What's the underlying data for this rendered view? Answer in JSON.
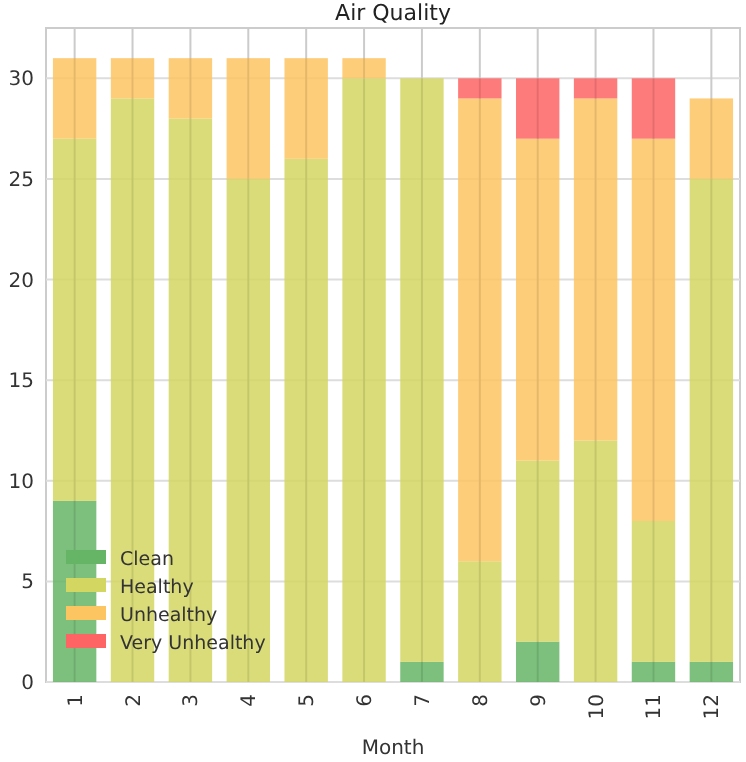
{
  "chart_data": {
    "type": "bar",
    "title": "Air Quality",
    "xlabel": "Month",
    "categories": [
      "1",
      "2",
      "3",
      "4",
      "5",
      "6",
      "7",
      "8",
      "9",
      "10",
      "11",
      "12"
    ],
    "stacked": true,
    "series": [
      {
        "name": "Clean",
        "color": "#66b566",
        "values": [
          9,
          0,
          0,
          0,
          0,
          0,
          1,
          0,
          2,
          0,
          1,
          1
        ]
      },
      {
        "name": "Healthy",
        "color": "#d4d662",
        "values": [
          18,
          29,
          28,
          25,
          26,
          30,
          29,
          6,
          9,
          12,
          7,
          24
        ]
      },
      {
        "name": "Unhealthy",
        "color": "#fdc462",
        "values": [
          4,
          2,
          3,
          6,
          5,
          1,
          0,
          23,
          16,
          17,
          19,
          4
        ]
      },
      {
        "name": "Very Unhealthy",
        "color": "#fe6464",
        "values": [
          0,
          0,
          0,
          0,
          0,
          0,
          0,
          1,
          3,
          1,
          3,
          0
        ]
      }
    ],
    "ylim": [
      0,
      32.5
    ],
    "yticks": [
      0,
      5,
      10,
      15,
      20,
      25,
      30
    ],
    "grid": true,
    "legend": "bottom left"
  }
}
